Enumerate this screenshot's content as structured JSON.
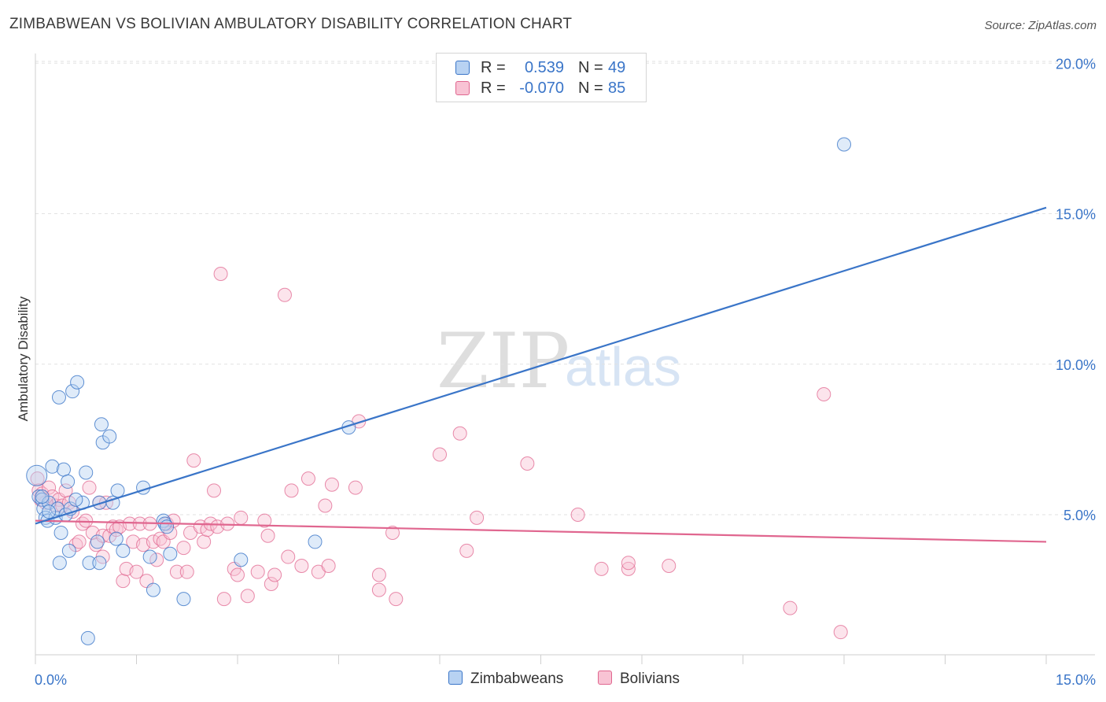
{
  "title": "ZIMBABWEAN VS BOLIVIAN AMBULATORY DISABILITY CORRELATION CHART",
  "source": "Source: ZipAtlas.com",
  "watermark": {
    "zip": "ZIP",
    "atlas": "atlas"
  },
  "stats": [
    {
      "r_label": "R =",
      "r_value": "0.539",
      "n_label": "N =",
      "n_value": "49",
      "color": "#3a75c8",
      "fill": "#b8d2f2"
    },
    {
      "r_label": "R =",
      "r_value": "-0.070",
      "n_label": "N =",
      "n_value": "85",
      "color": "#e0668f",
      "fill": "#f8c3d4"
    }
  ],
  "legend": [
    {
      "label": "Zimbabweans",
      "color": "#3a75c8",
      "fill": "#b8d2f2"
    },
    {
      "label": "Bolivians",
      "color": "#e0668f",
      "fill": "#f8c3d4"
    }
  ],
  "chart_data": {
    "type": "scatter",
    "title": "ZIMBABWEAN VS BOLIVIAN AMBULATORY DISABILITY CORRELATION CHART",
    "xlabel": "",
    "ylabel": "Ambulatory Disability",
    "xlim": [
      0,
      15
    ],
    "ylim": [
      0,
      20.8
    ],
    "x_tick_labels": [
      {
        "value": 0,
        "label": "0.0%"
      },
      {
        "value": 15,
        "label": "15.0%"
      }
    ],
    "y_tick_labels": [
      {
        "value": 5,
        "label": "5.0%"
      },
      {
        "value": 10,
        "label": "10.0%"
      },
      {
        "value": 15,
        "label": "15.0%"
      },
      {
        "value": 20,
        "label": "20.0%"
      }
    ],
    "x_minor_ticks": [
      0,
      1.5,
      3,
      4.5,
      6,
      7.5,
      9,
      10.5,
      12,
      13.5,
      15
    ],
    "series": [
      {
        "name": "Zimbabweans",
        "color": "#3a75c8",
        "fill": "#b8d2f2",
        "trend": {
          "x": [
            0,
            15
          ],
          "y": [
            4.7,
            15.2
          ]
        },
        "points": [
          [
            0.02,
            6.3
          ],
          [
            0.05,
            5.6
          ],
          [
            0.1,
            5.5
          ],
          [
            0.12,
            5.2
          ],
          [
            0.15,
            4.9
          ],
          [
            0.18,
            4.8
          ],
          [
            0.2,
            5.4
          ],
          [
            0.25,
            6.6
          ],
          [
            0.3,
            4.9
          ],
          [
            0.33,
            5.2
          ],
          [
            0.35,
            8.9
          ],
          [
            0.36,
            3.4
          ],
          [
            0.38,
            4.4
          ],
          [
            0.42,
            6.5
          ],
          [
            0.45,
            5.0
          ],
          [
            0.48,
            6.1
          ],
          [
            0.5,
            3.8
          ],
          [
            0.52,
            5.2
          ],
          [
            0.55,
            9.1
          ],
          [
            0.62,
            9.4
          ],
          [
            0.7,
            5.4
          ],
          [
            0.75,
            6.4
          ],
          [
            0.78,
            0.9
          ],
          [
            0.8,
            3.4
          ],
          [
            0.95,
            5.4
          ],
          [
            0.92,
            4.1
          ],
          [
            0.95,
            3.4
          ],
          [
            0.98,
            8.0
          ],
          [
            1.0,
            7.4
          ],
          [
            1.1,
            7.6
          ],
          [
            1.15,
            5.4
          ],
          [
            1.2,
            4.2
          ],
          [
            1.22,
            5.8
          ],
          [
            1.6,
            5.9
          ],
          [
            1.7,
            3.6
          ],
          [
            1.75,
            2.5
          ],
          [
            1.9,
            4.8
          ],
          [
            1.92,
            4.7
          ],
          [
            1.95,
            4.6
          ],
          [
            2.0,
            3.7
          ],
          [
            2.2,
            2.2
          ],
          [
            3.05,
            3.5
          ],
          [
            4.15,
            4.1
          ],
          [
            4.65,
            7.9
          ],
          [
            0.1,
            5.6
          ],
          [
            0.2,
            5.1
          ],
          [
            0.6,
            5.5
          ],
          [
            1.3,
            3.8
          ],
          [
            12.0,
            17.3
          ]
        ]
      },
      {
        "name": "Bolivians",
        "color": "#e0668f",
        "fill": "#f8c3d4",
        "trend": {
          "x": [
            0,
            15
          ],
          "y": [
            4.8,
            4.1
          ]
        },
        "points": [
          [
            0.03,
            6.2
          ],
          [
            0.05,
            5.8
          ],
          [
            0.08,
            5.5
          ],
          [
            0.1,
            5.7
          ],
          [
            0.15,
            5.4
          ],
          [
            0.2,
            5.9
          ],
          [
            0.25,
            5.6
          ],
          [
            0.3,
            5.3
          ],
          [
            0.35,
            5.5
          ],
          [
            0.4,
            5.3
          ],
          [
            0.45,
            5.8
          ],
          [
            0.5,
            5.4
          ],
          [
            0.55,
            5.1
          ],
          [
            0.6,
            4.0
          ],
          [
            0.65,
            4.1
          ],
          [
            0.7,
            4.7
          ],
          [
            0.75,
            4.8
          ],
          [
            0.8,
            5.9
          ],
          [
            0.85,
            4.4
          ],
          [
            0.9,
            4.0
          ],
          [
            0.95,
            5.4
          ],
          [
            1.0,
            4.3
          ],
          [
            1.05,
            5.4
          ],
          [
            1.1,
            4.3
          ],
          [
            1.15,
            4.6
          ],
          [
            1.2,
            4.5
          ],
          [
            1.25,
            4.6
          ],
          [
            1.3,
            2.8
          ],
          [
            1.35,
            3.2
          ],
          [
            1.4,
            4.7
          ],
          [
            1.45,
            4.1
          ],
          [
            1.5,
            3.1
          ],
          [
            1.55,
            4.7
          ],
          [
            1.6,
            4.0
          ],
          [
            1.65,
            2.8
          ],
          [
            1.7,
            4.7
          ],
          [
            1.75,
            4.1
          ],
          [
            1.8,
            3.5
          ],
          [
            1.85,
            4.2
          ],
          [
            1.9,
            4.1
          ],
          [
            1.95,
            4.7
          ],
          [
            2.0,
            4.4
          ],
          [
            2.05,
            4.8
          ],
          [
            2.1,
            3.1
          ],
          [
            2.2,
            3.9
          ],
          [
            2.25,
            3.1
          ],
          [
            2.3,
            4.4
          ],
          [
            2.35,
            6.8
          ],
          [
            2.45,
            4.6
          ],
          [
            2.5,
            4.1
          ],
          [
            2.55,
            4.5
          ],
          [
            2.6,
            4.7
          ],
          [
            2.65,
            5.8
          ],
          [
            2.7,
            4.6
          ],
          [
            2.75,
            13.0
          ],
          [
            2.8,
            2.2
          ],
          [
            2.85,
            4.7
          ],
          [
            2.95,
            3.2
          ],
          [
            3.05,
            4.9
          ],
          [
            3.15,
            2.3
          ],
          [
            3.3,
            3.1
          ],
          [
            3.4,
            4.8
          ],
          [
            3.45,
            4.3
          ],
          [
            3.5,
            2.7
          ],
          [
            3.55,
            3.0
          ],
          [
            3.7,
            12.3
          ],
          [
            3.75,
            3.6
          ],
          [
            3.8,
            5.8
          ],
          [
            3.95,
            3.3
          ],
          [
            4.05,
            6.2
          ],
          [
            4.2,
            3.1
          ],
          [
            4.3,
            5.3
          ],
          [
            4.35,
            3.3
          ],
          [
            4.4,
            6.0
          ],
          [
            4.75,
            5.9
          ],
          [
            5.1,
            2.5
          ],
          [
            5.3,
            4.4
          ],
          [
            5.35,
            2.2
          ],
          [
            6.0,
            7.0
          ],
          [
            6.3,
            7.7
          ],
          [
            6.4,
            3.8
          ],
          [
            6.55,
            4.9
          ],
          [
            7.3,
            6.7
          ],
          [
            8.05,
            5.0
          ],
          [
            8.4,
            3.2
          ]
        ]
      }
    ],
    "extra_bolivian_points": [
      [
        8.8,
        3.2
      ],
      [
        8.8,
        3.4
      ],
      [
        9.4,
        3.3
      ],
      [
        11.2,
        1.9
      ],
      [
        11.7,
        9.0
      ],
      [
        11.95,
        1.1
      ],
      [
        3.0,
        3.0
      ],
      [
        4.8,
        8.1
      ],
      [
        5.1,
        3.0
      ],
      [
        1.0,
        3.6
      ]
    ]
  }
}
